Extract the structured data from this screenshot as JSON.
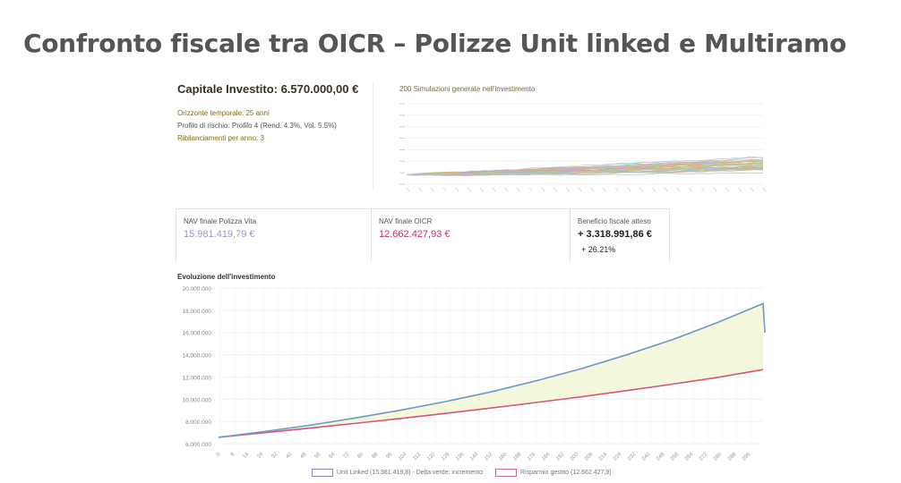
{
  "slide": {
    "title": "Confronto fiscale tra OICR – Polizze Unit linked e Multiramo"
  },
  "summary": {
    "capital_title": "Capitale Investito: 6.570.000,00 €",
    "params": [
      "Orizzonte temporale: 25 anni",
      "Profilo di rischio: Profilo 4 (Rend. 4.3%, Vol. 5.5%)",
      "Ribilanciamenti per anno: 3"
    ]
  },
  "simulations": {
    "title": "200 Simulazioni generate nell'investimento"
  },
  "nav": {
    "life_label": "NAV finale Polizza Vita",
    "life_value": "15.981.419,79 €",
    "oicr_label": "NAV finale OICR",
    "oicr_value": "12.662.427,93 €",
    "benefit_label": "Beneficio fiscale atteso",
    "benefit_value": "+ 3.318.991,86 €",
    "benefit_pct": "+ 26.21%"
  },
  "colors": {
    "unit_linked": "#6b9ac8",
    "risparmio": "#d8557a",
    "delta_fill": "#f5f7dc",
    "accent_red": "#c83258",
    "accent_lavender": "#9a94c4"
  },
  "chart_data": [
    {
      "type": "line",
      "title": "200 Simulazioni generate nell'investimento",
      "x_range": [
        0,
        300
      ],
      "y_range": [
        4000000,
        26000000
      ],
      "grid": true,
      "note_series": "approximate fan of simulated paths"
    },
    {
      "type": "area",
      "title": "Evoluzione dell'investimento",
      "xlabel": "",
      "ylabel": "",
      "ylim": [
        6000000,
        20000000
      ],
      "yticks": [
        6000000,
        8000000,
        10000000,
        12000000,
        14000000,
        16000000,
        18000000,
        20000000
      ],
      "ytick_labels": [
        "6.000.000",
        "8.000.000",
        "10.000.000",
        "12.000.000",
        "14.000.000",
        "16.000.000",
        "18.000.000",
        "20.000.000"
      ],
      "xticks": [
        "0",
        "8",
        "16",
        "24",
        "32",
        "40",
        "48",
        "56",
        "64",
        "72",
        "80",
        "88",
        "96",
        "104",
        "112",
        "120",
        "128",
        "136",
        "144",
        "152",
        "160",
        "168",
        "176",
        "184",
        "192",
        "200",
        "208",
        "216",
        "224",
        "232",
        "240",
        "248",
        "256",
        "264",
        "272",
        "280",
        "288",
        "296"
      ],
      "x_range": [
        0,
        300
      ],
      "grid": true,
      "legend": "bottom",
      "series": [
        {
          "name": "Unit Linked (15.981.419,8) - Delta verde: incremento",
          "color": "#6b9ac8",
          "x": [
            0,
            25,
            50,
            75,
            100,
            125,
            150,
            175,
            200,
            225,
            250,
            275,
            300,
            301
          ],
          "values": [
            6570000,
            7080000,
            7650000,
            8300000,
            9000000,
            9780000,
            10650000,
            11650000,
            12750000,
            14000000,
            15350000,
            16900000,
            18600000,
            15981420
          ]
        },
        {
          "name": "Risparmio gestito (12.662.427,9)",
          "color": "#d8557a",
          "x": [
            0,
            25,
            50,
            75,
            100,
            125,
            150,
            175,
            200,
            225,
            250,
            275,
            300
          ],
          "values": [
            6570000,
            6980000,
            7390000,
            7820000,
            8260000,
            8720000,
            9200000,
            9700000,
            10220000,
            10770000,
            11350000,
            11960000,
            12662428
          ]
        }
      ]
    }
  ]
}
